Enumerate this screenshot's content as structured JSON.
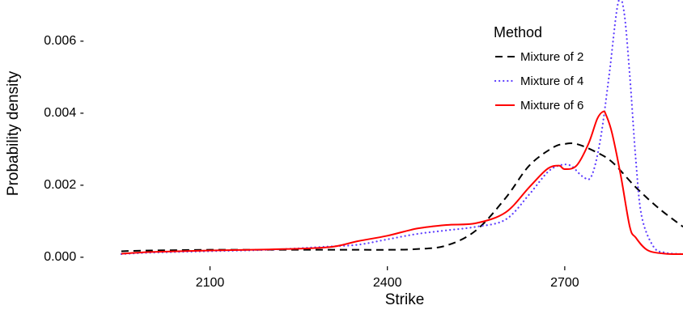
{
  "chart_data": {
    "type": "line",
    "title": "",
    "xlabel": "Strike",
    "ylabel": "Probability density",
    "xlim": [
      1920,
      2900
    ],
    "ylim": [
      -0.00014,
      0.0071
    ],
    "x_ticks": [
      2100,
      2400,
      2700
    ],
    "x_tick_labels": [
      "2100",
      "2400",
      "2700"
    ],
    "y_ticks": [
      0.0,
      0.002,
      0.004,
      0.006
    ],
    "y_tick_labels": [
      "0.000 -",
      "0.002 -",
      "0.004 -",
      "0.006 -"
    ],
    "grid": false,
    "legend": {
      "title": "Method",
      "position": "top-right",
      "entries": [
        "Mixture of 2",
        "Mixture of 4",
        "Mixture of 6"
      ]
    },
    "series": [
      {
        "name": "Mixture of 2",
        "color": "#000000",
        "dash": "dashed",
        "x": [
          1950,
          2000,
          2100,
          2200,
          2300,
          2350,
          2400,
          2450,
          2500,
          2550,
          2600,
          2640,
          2680,
          2700,
          2720,
          2750,
          2780,
          2820,
          2860,
          2900
        ],
        "y": [
          0.00012,
          0.00014,
          0.00016,
          0.00016,
          0.00016,
          0.00016,
          0.00016,
          0.00018,
          0.00028,
          0.0007,
          0.0016,
          0.0025,
          0.003,
          0.0031,
          0.0031,
          0.0029,
          0.0026,
          0.0019,
          0.0013,
          0.0008
        ]
      },
      {
        "name": "Mixture of 4",
        "color": "#5d3dff",
        "dash": "dotted",
        "x": [
          1950,
          2000,
          2100,
          2200,
          2300,
          2350,
          2400,
          2450,
          2500,
          2550,
          2600,
          2640,
          2670,
          2690,
          2710,
          2730,
          2745,
          2760,
          2775,
          2790,
          2800,
          2810,
          2820,
          2830,
          2850,
          2870,
          2900
        ],
        "y": [
          4e-05,
          8e-05,
          0.00012,
          0.00016,
          0.00025,
          0.0003,
          0.00045,
          0.0006,
          0.0007,
          0.0008,
          0.001,
          0.0017,
          0.0023,
          0.0025,
          0.0025,
          0.0022,
          0.0022,
          0.0032,
          0.005,
          0.007,
          0.0068,
          0.005,
          0.0027,
          0.0011,
          0.00025,
          8e-05,
          4e-05
        ]
      },
      {
        "name": "Mixture of 6",
        "color": "#ff0000",
        "dash": "solid",
        "x": [
          1950,
          2000,
          2100,
          2200,
          2300,
          2350,
          2400,
          2450,
          2500,
          2550,
          2600,
          2640,
          2670,
          2690,
          2700,
          2720,
          2740,
          2755,
          2765,
          2770,
          2780,
          2795,
          2810,
          2820,
          2840,
          2870,
          2900
        ],
        "y": [
          5e-05,
          0.0001,
          0.00014,
          0.00017,
          0.00023,
          0.0004,
          0.00055,
          0.00075,
          0.00085,
          0.0009,
          0.0012,
          0.0019,
          0.0024,
          0.0025,
          0.0024,
          0.0025,
          0.0031,
          0.0038,
          0.004,
          0.0039,
          0.0034,
          0.0022,
          0.0008,
          0.0005,
          0.00015,
          5e-05,
          4e-05
        ]
      }
    ]
  }
}
